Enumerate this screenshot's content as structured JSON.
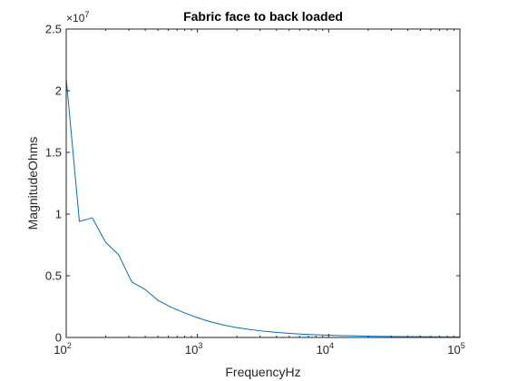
{
  "chart_data": {
    "type": "line",
    "title": "Fabric face to back loaded",
    "xlabel": "FrequencyHz",
    "ylabel": "MagnitudeOhms",
    "xscale": "log",
    "xlim": [
      100,
      100000
    ],
    "ylim": [
      0,
      25000000
    ],
    "grid": false,
    "legend": "none",
    "y_multiplier": {
      "base": "10",
      "exponent": "7",
      "prefix": "×"
    },
    "y_ticks": [
      {
        "value": 0,
        "label": "0"
      },
      {
        "value": 5000000,
        "label": "0.5"
      },
      {
        "value": 10000000,
        "label": "1"
      },
      {
        "value": 15000000,
        "label": "1.5"
      },
      {
        "value": 20000000,
        "label": "2"
      },
      {
        "value": 25000000,
        "label": "2.5"
      }
    ],
    "x_ticks": [
      {
        "value": 100,
        "base": "10",
        "exp": "2"
      },
      {
        "value": 1000,
        "base": "10",
        "exp": "3"
      },
      {
        "value": 10000,
        "base": "10",
        "exp": "4"
      },
      {
        "value": 100000,
        "base": "10",
        "exp": "5"
      }
    ],
    "series": [
      {
        "color": "#0072BD",
        "x": [
          100,
          126,
          158,
          200,
          251,
          316,
          398,
          501,
          631,
          794,
          1000,
          1259,
          1585,
          1995,
          2512,
          3162,
          3981,
          5012,
          6310,
          7943,
          10000,
          12589,
          15849,
          19953,
          25119,
          31623,
          39811,
          50119,
          63096,
          79433,
          100000
        ],
        "y": [
          21000000,
          9400000,
          9700000,
          7700000,
          6700000,
          4500000,
          3900000,
          3000000,
          2450000,
          2000000,
          1600000,
          1270000,
          1000000,
          800000,
          640000,
          510000,
          410000,
          330000,
          270000,
          220000,
          180000,
          150000,
          125000,
          105000,
          90000,
          78000,
          68000,
          60000,
          54000,
          49000,
          45000
        ]
      }
    ]
  }
}
